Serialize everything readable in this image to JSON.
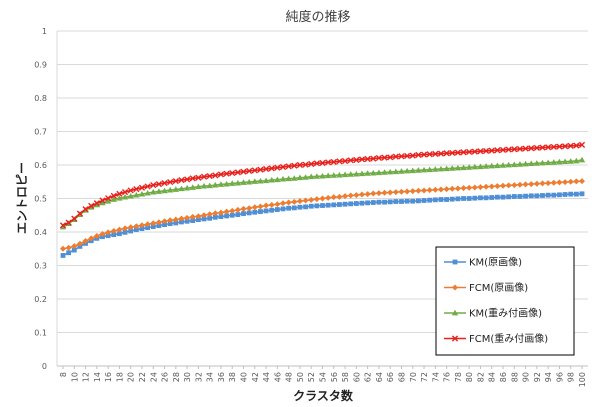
{
  "chart_data": {
    "type": "line",
    "title": "純度の推移",
    "xlabel": "クラスタ数",
    "ylabel": "エントロピー",
    "ylim": [
      0,
      1
    ],
    "yticks": [
      "0",
      "0.1",
      "0.2",
      "0.3",
      "0.4",
      "0.5",
      "0.6",
      "0.7",
      "0.8",
      "0.9",
      "1"
    ],
    "x": [
      8,
      9,
      10,
      11,
      12,
      13,
      14,
      15,
      16,
      17,
      18,
      19,
      20,
      21,
      22,
      23,
      24,
      25,
      26,
      27,
      28,
      29,
      30,
      31,
      32,
      33,
      34,
      35,
      36,
      37,
      38,
      39,
      40,
      41,
      42,
      43,
      44,
      45,
      46,
      47,
      48,
      49,
      50,
      51,
      52,
      53,
      54,
      55,
      56,
      57,
      58,
      59,
      60,
      61,
      62,
      63,
      64,
      65,
      66,
      67,
      68,
      69,
      70,
      71,
      72,
      73,
      74,
      75,
      76,
      77,
      78,
      79,
      80,
      81,
      82,
      83,
      84,
      85,
      86,
      87,
      88,
      89,
      90,
      91,
      92,
      93,
      94,
      95,
      96,
      97,
      98,
      99,
      100
    ],
    "xtick_labels": [
      "8",
      "10",
      "12",
      "14",
      "16",
      "18",
      "20",
      "22",
      "24",
      "26",
      "28",
      "30",
      "32",
      "34",
      "36",
      "38",
      "40",
      "42",
      "44",
      "46",
      "48",
      "50",
      "52",
      "54",
      "56",
      "58",
      "60",
      "62",
      "64",
      "66",
      "68",
      "70",
      "72",
      "74",
      "76",
      "78",
      "80",
      "82",
      "84",
      "86",
      "88",
      "90",
      "92",
      "94",
      "96",
      "98",
      "100"
    ],
    "grid": "horizontal",
    "legend_position": "bottom-right",
    "series": [
      {
        "name": "KM(原画像)",
        "color": "#4f8fd6",
        "marker": "square",
        "values": [
          0.33,
          0.338,
          0.346,
          0.357,
          0.366,
          0.374,
          0.381,
          0.386,
          0.389,
          0.392,
          0.395,
          0.399,
          0.403,
          0.407,
          0.41,
          0.413,
          0.416,
          0.419,
          0.422,
          0.425,
          0.427,
          0.43,
          0.432,
          0.434,
          0.437,
          0.439,
          0.441,
          0.444,
          0.446,
          0.448,
          0.45,
          0.452,
          0.455,
          0.457,
          0.459,
          0.461,
          0.463,
          0.465,
          0.467,
          0.469,
          0.471,
          0.472,
          0.474,
          0.475,
          0.477,
          0.478,
          0.479,
          0.48,
          0.481,
          0.482,
          0.483,
          0.484,
          0.485,
          0.486,
          0.487,
          0.488,
          0.489,
          0.489,
          0.49,
          0.491,
          0.491,
          0.492,
          0.492,
          0.493,
          0.494,
          0.495,
          0.496,
          0.497,
          0.497,
          0.498,
          0.499,
          0.5,
          0.5,
          0.501,
          0.502,
          0.502,
          0.503,
          0.504,
          0.504,
          0.505,
          0.506,
          0.506,
          0.507,
          0.508,
          0.508,
          0.509,
          0.51,
          0.51,
          0.511,
          0.512,
          0.513,
          0.513,
          0.514
        ]
      },
      {
        "name": "FCM(原画像)",
        "color": "#ed7d31",
        "marker": "diamond",
        "values": [
          0.35,
          0.353,
          0.358,
          0.365,
          0.373,
          0.381,
          0.388,
          0.394,
          0.399,
          0.403,
          0.407,
          0.411,
          0.414,
          0.417,
          0.42,
          0.423,
          0.426,
          0.429,
          0.432,
          0.435,
          0.437,
          0.44,
          0.442,
          0.445,
          0.447,
          0.45,
          0.453,
          0.456,
          0.458,
          0.461,
          0.463,
          0.466,
          0.469,
          0.471,
          0.474,
          0.476,
          0.479,
          0.481,
          0.483,
          0.486,
          0.488,
          0.49,
          0.492,
          0.494,
          0.496,
          0.498,
          0.5,
          0.502,
          0.504,
          0.505,
          0.507,
          0.509,
          0.51,
          0.512,
          0.513,
          0.515,
          0.516,
          0.517,
          0.518,
          0.519,
          0.52,
          0.521,
          0.522,
          0.523,
          0.524,
          0.525,
          0.526,
          0.527,
          0.528,
          0.529,
          0.53,
          0.531,
          0.532,
          0.533,
          0.534,
          0.535,
          0.536,
          0.537,
          0.538,
          0.539,
          0.54,
          0.541,
          0.542,
          0.543,
          0.544,
          0.545,
          0.546,
          0.547,
          0.548,
          0.549,
          0.55,
          0.551,
          0.552
        ]
      },
      {
        "name": "KM(重み付画像)",
        "color": "#70ad47",
        "marker": "triangle",
        "values": [
          0.415,
          0.425,
          0.437,
          0.452,
          0.465,
          0.474,
          0.481,
          0.487,
          0.492,
          0.497,
          0.501,
          0.504,
          0.507,
          0.51,
          0.513,
          0.516,
          0.519,
          0.521,
          0.523,
          0.525,
          0.527,
          0.529,
          0.531,
          0.533,
          0.535,
          0.537,
          0.538,
          0.54,
          0.542,
          0.543,
          0.545,
          0.546,
          0.548,
          0.549,
          0.551,
          0.552,
          0.553,
          0.555,
          0.556,
          0.558,
          0.559,
          0.56,
          0.562,
          0.563,
          0.565,
          0.566,
          0.567,
          0.568,
          0.569,
          0.57,
          0.571,
          0.572,
          0.573,
          0.574,
          0.575,
          0.576,
          0.577,
          0.578,
          0.579,
          0.58,
          0.581,
          0.582,
          0.583,
          0.584,
          0.585,
          0.586,
          0.587,
          0.588,
          0.589,
          0.59,
          0.591,
          0.592,
          0.593,
          0.594,
          0.595,
          0.596,
          0.597,
          0.598,
          0.599,
          0.6,
          0.601,
          0.602,
          0.603,
          0.604,
          0.605,
          0.606,
          0.607,
          0.608,
          0.609,
          0.61,
          0.611,
          0.612,
          0.615
        ]
      },
      {
        "name": "FCM(重み付画像)",
        "color": "#e8211c",
        "marker": "x",
        "values": [
          0.42,
          0.428,
          0.44,
          0.455,
          0.468,
          0.478,
          0.486,
          0.494,
          0.501,
          0.508,
          0.514,
          0.519,
          0.524,
          0.528,
          0.532,
          0.536,
          0.54,
          0.543,
          0.546,
          0.549,
          0.552,
          0.555,
          0.557,
          0.56,
          0.562,
          0.565,
          0.567,
          0.569,
          0.572,
          0.574,
          0.576,
          0.578,
          0.58,
          0.582,
          0.584,
          0.586,
          0.588,
          0.59,
          0.592,
          0.594,
          0.596,
          0.598,
          0.6,
          0.601,
          0.603,
          0.605,
          0.606,
          0.608,
          0.609,
          0.611,
          0.612,
          0.614,
          0.615,
          0.617,
          0.618,
          0.619,
          0.621,
          0.622,
          0.623,
          0.625,
          0.626,
          0.627,
          0.628,
          0.63,
          0.631,
          0.632,
          0.633,
          0.634,
          0.635,
          0.636,
          0.637,
          0.638,
          0.639,
          0.64,
          0.641,
          0.642,
          0.643,
          0.644,
          0.645,
          0.646,
          0.647,
          0.648,
          0.649,
          0.65,
          0.651,
          0.652,
          0.653,
          0.654,
          0.655,
          0.656,
          0.657,
          0.658,
          0.66
        ]
      }
    ]
  }
}
